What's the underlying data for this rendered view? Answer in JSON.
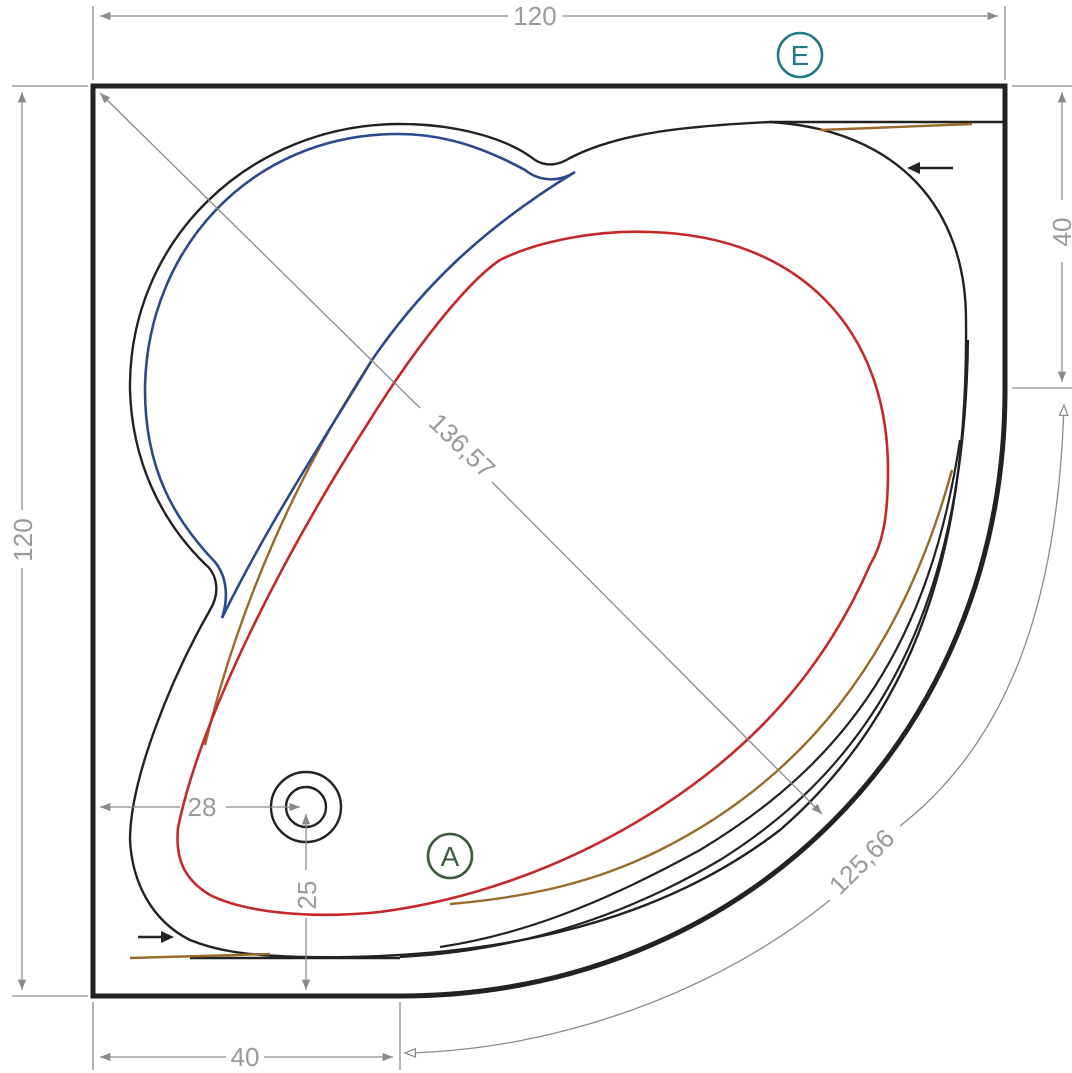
{
  "dimensions": {
    "top_width": "120",
    "left_height": "120",
    "right_side_segment": "40",
    "bottom_side_segment": "40",
    "diagonal": "136,57",
    "arc_length": "125,66",
    "drain_offset_x": "28",
    "drain_offset_y": "25"
  },
  "labels": {
    "corner_marker": "E",
    "basin_marker": "A"
  },
  "colors": {
    "outline": "#222222",
    "inner_seat": "#2b4a8c",
    "basin": "#c62828",
    "rim_line": "#9a6a2a",
    "dimension": "#8a8a8a",
    "marker_e": "#1f7a86",
    "marker_a": "#3b5a3a"
  }
}
